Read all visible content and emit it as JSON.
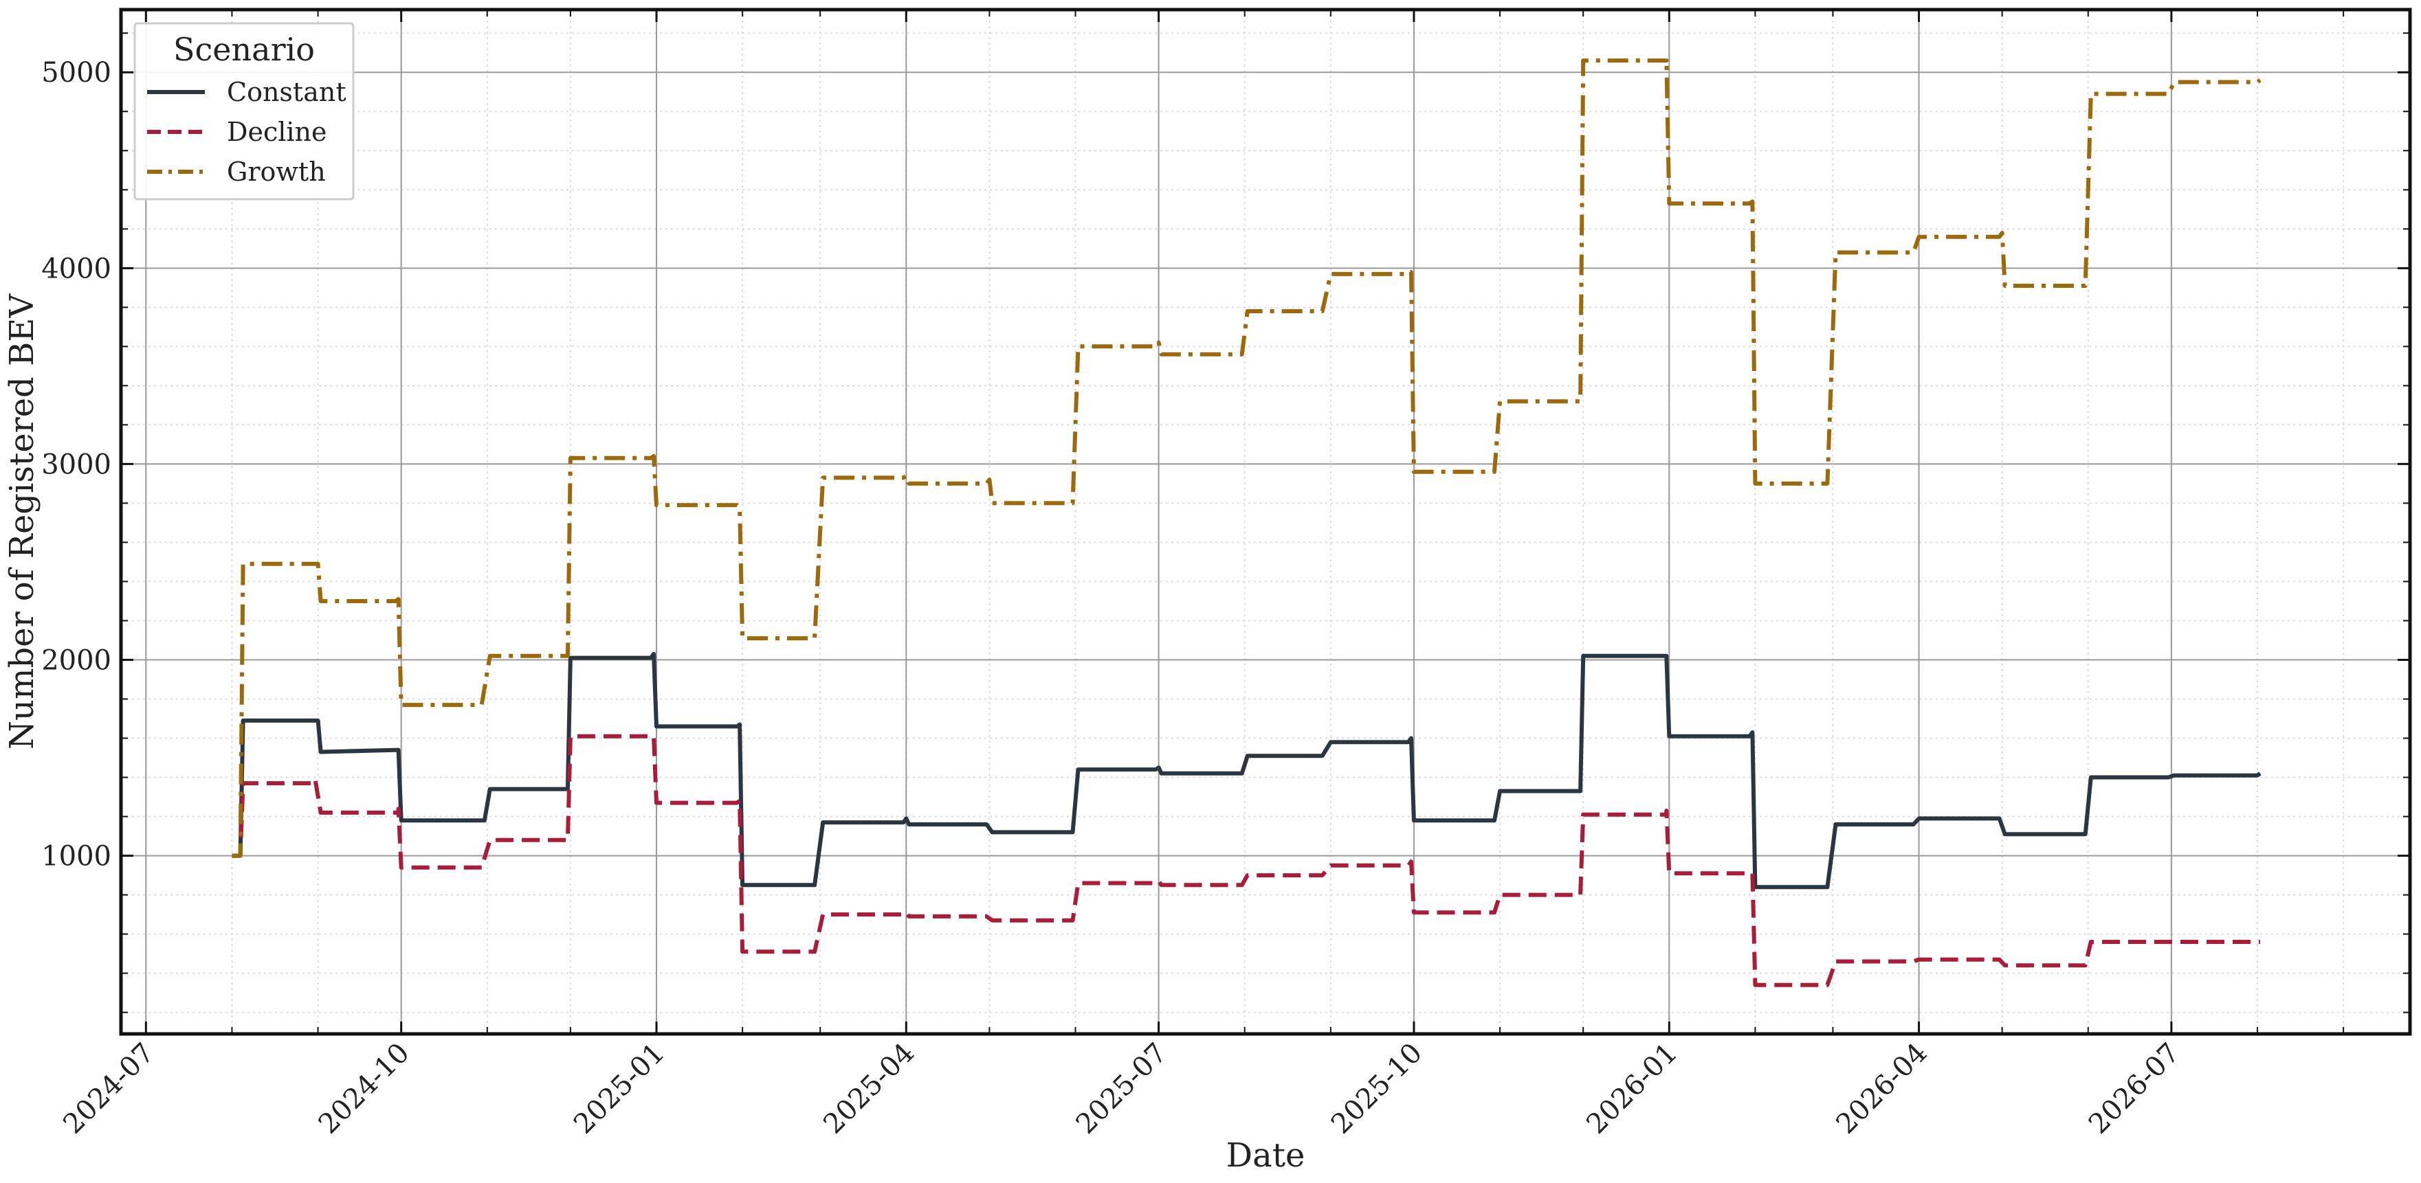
{
  "chart_data": {
    "type": "line",
    "title": "",
    "xlabel": "Date",
    "ylabel": "Number of Registered BEV",
    "x_type": "date",
    "xlim": [
      "2024-06-22",
      "2026-09-25"
    ],
    "ylim": [
      90,
      5320
    ],
    "x_ticks": [
      "2024-07-01",
      "2024-10-01",
      "2025-01-01",
      "2025-04-01",
      "2025-07-01",
      "2025-10-01",
      "2026-01-01",
      "2026-04-01",
      "2026-07-01"
    ],
    "x_tick_labels": [
      "2024-07",
      "2024-10",
      "2025-01",
      "2025-04",
      "2025-07",
      "2025-10",
      "2026-01",
      "2026-04",
      "2026-07"
    ],
    "y_ticks": [
      1000,
      2000,
      3000,
      4000,
      5000
    ],
    "y_tick_labels": [
      "1000",
      "2000",
      "3000",
      "4000",
      "5000"
    ],
    "grid": true,
    "legend": {
      "title": "Scenario",
      "placement": "top-left"
    },
    "series": [
      {
        "name": "Constant",
        "color": "#2b3640",
        "dash": "solid",
        "points": [
          [
            "2024-08-01",
            1000
          ],
          [
            "2024-08-04",
            1000
          ],
          [
            "2024-08-05",
            1690
          ],
          [
            "2024-09-01",
            1690
          ],
          [
            "2024-09-02",
            1530
          ],
          [
            "2024-09-30",
            1540
          ],
          [
            "2024-10-01",
            1180
          ],
          [
            "2024-10-31",
            1180
          ],
          [
            "2024-11-02",
            1340
          ],
          [
            "2024-11-30",
            1340
          ],
          [
            "2024-12-01",
            2010
          ],
          [
            "2024-12-30",
            2010
          ],
          [
            "2024-12-31",
            2030
          ],
          [
            "2025-01-01",
            1660
          ],
          [
            "2025-01-30",
            1660
          ],
          [
            "2025-01-31",
            1670
          ],
          [
            "2025-02-01",
            850
          ],
          [
            "2025-02-27",
            850
          ],
          [
            "2025-03-02",
            1170
          ],
          [
            "2025-03-31",
            1170
          ],
          [
            "2025-04-01",
            1190
          ],
          [
            "2025-04-02",
            1160
          ],
          [
            "2025-04-30",
            1160
          ],
          [
            "2025-05-02",
            1120
          ],
          [
            "2025-05-31",
            1120
          ],
          [
            "2025-06-02",
            1440
          ],
          [
            "2025-06-30",
            1440
          ],
          [
            "2025-07-01",
            1450
          ],
          [
            "2025-07-02",
            1420
          ],
          [
            "2025-07-31",
            1420
          ],
          [
            "2025-08-02",
            1510
          ],
          [
            "2025-08-29",
            1510
          ],
          [
            "2025-09-01",
            1580
          ],
          [
            "2025-09-29",
            1580
          ],
          [
            "2025-09-30",
            1600
          ],
          [
            "2025-10-01",
            1180
          ],
          [
            "2025-10-30",
            1180
          ],
          [
            "2025-11-01",
            1330
          ],
          [
            "2025-11-30",
            1330
          ],
          [
            "2025-12-01",
            2020
          ],
          [
            "2025-12-31",
            2020
          ],
          [
            "2026-01-01",
            1610
          ],
          [
            "2026-01-30",
            1610
          ],
          [
            "2026-01-31",
            1630
          ],
          [
            "2026-02-01",
            840
          ],
          [
            "2026-02-27",
            840
          ],
          [
            "2026-03-02",
            1160
          ],
          [
            "2026-03-30",
            1160
          ],
          [
            "2026-04-01",
            1190
          ],
          [
            "2026-04-30",
            1190
          ],
          [
            "2026-05-02",
            1110
          ],
          [
            "2026-05-31",
            1110
          ],
          [
            "2026-06-02",
            1400
          ],
          [
            "2026-06-30",
            1400
          ],
          [
            "2026-07-02",
            1410
          ],
          [
            "2026-08-01",
            1410
          ],
          [
            "2026-08-02",
            1420
          ]
        ]
      },
      {
        "name": "Decline",
        "color": "#a81c3c",
        "dash": "dashed",
        "points": [
          [
            "2024-08-01",
            1000
          ],
          [
            "2024-08-04",
            1000
          ],
          [
            "2024-08-05",
            1370
          ],
          [
            "2024-08-30",
            1370
          ],
          [
            "2024-08-31",
            1390
          ],
          [
            "2024-09-02",
            1220
          ],
          [
            "2024-09-30",
            1220
          ],
          [
            "2024-09-30",
            1240
          ],
          [
            "2024-10-01",
            940
          ],
          [
            "2024-10-30",
            940
          ],
          [
            "2024-11-02",
            1080
          ],
          [
            "2024-11-30",
            1080
          ],
          [
            "2024-12-01",
            1610
          ],
          [
            "2024-12-31",
            1610
          ],
          [
            "2025-01-01",
            1270
          ],
          [
            "2025-01-30",
            1270
          ],
          [
            "2025-01-31",
            1280
          ],
          [
            "2025-02-01",
            510
          ],
          [
            "2025-02-27",
            510
          ],
          [
            "2025-03-02",
            700
          ],
          [
            "2025-03-31",
            700
          ],
          [
            "2025-04-01",
            710
          ],
          [
            "2025-04-02",
            690
          ],
          [
            "2025-04-30",
            690
          ],
          [
            "2025-05-02",
            670
          ],
          [
            "2025-05-31",
            670
          ],
          [
            "2025-06-02",
            860
          ],
          [
            "2025-06-30",
            860
          ],
          [
            "2025-07-01",
            870
          ],
          [
            "2025-07-02",
            850
          ],
          [
            "2025-07-31",
            850
          ],
          [
            "2025-08-02",
            900
          ],
          [
            "2025-08-29",
            900
          ],
          [
            "2025-09-01",
            950
          ],
          [
            "2025-09-29",
            950
          ],
          [
            "2025-09-30",
            970
          ],
          [
            "2025-10-01",
            710
          ],
          [
            "2025-10-30",
            710
          ],
          [
            "2025-11-01",
            800
          ],
          [
            "2025-11-30",
            800
          ],
          [
            "2025-12-01",
            1210
          ],
          [
            "2025-12-31",
            1210
          ],
          [
            "2025-12-31",
            1230
          ],
          [
            "2026-01-01",
            910
          ],
          [
            "2026-01-31",
            910
          ],
          [
            "2026-02-01",
            340
          ],
          [
            "2026-02-27",
            340
          ],
          [
            "2026-03-02",
            460
          ],
          [
            "2026-03-30",
            460
          ],
          [
            "2026-04-01",
            470
          ],
          [
            "2026-04-30",
            470
          ],
          [
            "2026-05-02",
            440
          ],
          [
            "2026-05-31",
            440
          ],
          [
            "2026-06-02",
            560
          ],
          [
            "2026-06-30",
            560
          ],
          [
            "2026-07-02",
            560
          ],
          [
            "2026-08-02",
            560
          ]
        ]
      },
      {
        "name": "Growth",
        "color": "#9a6a0c",
        "dash": "dashdot",
        "points": [
          [
            "2024-08-01",
            1000
          ],
          [
            "2024-08-04",
            1000
          ],
          [
            "2024-08-05",
            2490
          ],
          [
            "2024-09-01",
            2490
          ],
          [
            "2024-09-02",
            2300
          ],
          [
            "2024-09-29",
            2300
          ],
          [
            "2024-09-30",
            2310
          ],
          [
            "2024-10-01",
            1770
          ],
          [
            "2024-10-30",
            1770
          ],
          [
            "2024-11-02",
            2020
          ],
          [
            "2024-11-30",
            2020
          ],
          [
            "2024-12-01",
            3030
          ],
          [
            "2024-12-30",
            3030
          ],
          [
            "2024-12-31",
            3040
          ],
          [
            "2025-01-01",
            2790
          ],
          [
            "2025-01-30",
            2790
          ],
          [
            "2025-01-31",
            2780
          ],
          [
            "2025-02-01",
            2110
          ],
          [
            "2025-02-27",
            2110
          ],
          [
            "2025-03-02",
            2930
          ],
          [
            "2025-03-31",
            2930
          ],
          [
            "2025-04-01",
            2940
          ],
          [
            "2025-04-02",
            2900
          ],
          [
            "2025-04-30",
            2900
          ],
          [
            "2025-05-01",
            2920
          ],
          [
            "2025-05-02",
            2800
          ],
          [
            "2025-05-31",
            2800
          ],
          [
            "2025-06-02",
            3600
          ],
          [
            "2025-06-30",
            3600
          ],
          [
            "2025-07-01",
            3620
          ],
          [
            "2025-07-02",
            3560
          ],
          [
            "2025-07-31",
            3560
          ],
          [
            "2025-08-02",
            3780
          ],
          [
            "2025-08-29",
            3780
          ],
          [
            "2025-09-01",
            3970
          ],
          [
            "2025-09-29",
            3970
          ],
          [
            "2025-09-30",
            3980
          ],
          [
            "2025-10-01",
            2960
          ],
          [
            "2025-10-30",
            2960
          ],
          [
            "2025-11-01",
            3320
          ],
          [
            "2025-11-30",
            3320
          ],
          [
            "2025-12-01",
            5060
          ],
          [
            "2025-12-31",
            5060
          ],
          [
            "2025-12-31",
            5070
          ],
          [
            "2026-01-01",
            4330
          ],
          [
            "2026-01-30",
            4330
          ],
          [
            "2026-01-31",
            4340
          ],
          [
            "2026-02-01",
            2900
          ],
          [
            "2026-02-27",
            2900
          ],
          [
            "2026-03-02",
            4080
          ],
          [
            "2026-03-30",
            4080
          ],
          [
            "2026-04-01",
            4160
          ],
          [
            "2026-04-30",
            4160
          ],
          [
            "2026-05-01",
            4180
          ],
          [
            "2026-05-02",
            3910
          ],
          [
            "2026-05-31",
            3910
          ],
          [
            "2026-06-02",
            4890
          ],
          [
            "2026-06-30",
            4890
          ],
          [
            "2026-07-02",
            4950
          ],
          [
            "2026-08-01",
            4950
          ],
          [
            "2026-08-02",
            4960
          ]
        ]
      }
    ]
  }
}
